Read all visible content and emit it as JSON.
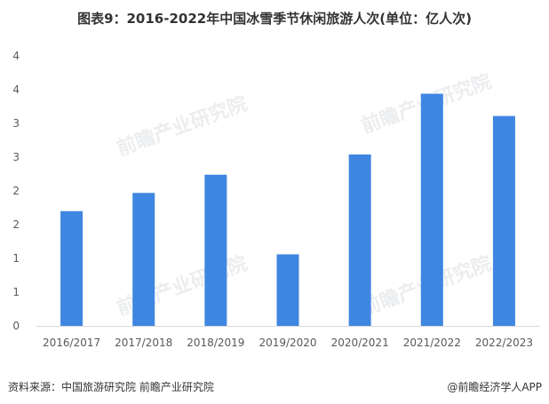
{
  "title": "图表9：2016-2022年中国冰雪季节休闲旅游人次(单位：亿人次)",
  "watermark": "前瞻产业研究院",
  "footer": {
    "source": "资料来源：中国旅游研究院 前瞻产业研究院",
    "app": "@前瞻经济学人APP"
  },
  "colors": {
    "bar": "#3f86e1",
    "axis": "#d9d9d9"
  },
  "chart_data": {
    "type": "bar",
    "categories": [
      "2016/2017",
      "2017/2018",
      "2018/2019",
      "2019/2020",
      "2020/2021",
      "2021/2022",
      "2022/2023"
    ],
    "values": [
      1.7,
      1.97,
      2.24,
      1.06,
      2.54,
      3.44,
      3.11
    ],
    "ylim": [
      0,
      4
    ],
    "y_ticks": [
      0,
      0.5,
      1,
      1.5,
      2,
      2.5,
      3,
      3.5,
      4
    ],
    "y_tick_labels": [
      "0",
      "1",
      "1",
      "2",
      "2",
      "3",
      "3",
      "4",
      "4"
    ],
    "grid": false,
    "legend": "none"
  }
}
